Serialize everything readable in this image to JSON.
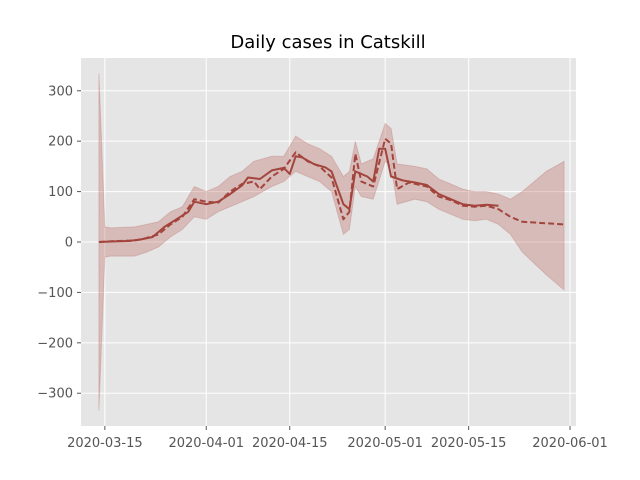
{
  "colors": {
    "plot_background": "#e5e5e5",
    "grid": "#ffffff",
    "series": "#a3453d",
    "band": "#b35a52",
    "band_opacity": 0.3
  },
  "chart_data": {
    "type": "line",
    "title": "Daily cases in Catskill",
    "xlabel": "",
    "ylabel": "",
    "x_type": "date",
    "xlim": [
      "2020-03-11",
      "2020-06-02"
    ],
    "ylim": [
      -365,
      365
    ],
    "x_ticks": [
      "2020-03-15",
      "2020-04-01",
      "2020-04-15",
      "2020-05-01",
      "2020-05-15",
      "2020-06-01"
    ],
    "y_ticks": [
      -300,
      -200,
      -100,
      0,
      100,
      200,
      300
    ],
    "y_tick_labels": [
      "−300",
      "−200",
      "−100",
      "0",
      "100",
      "200",
      "300"
    ],
    "grid": true,
    "legend": "none",
    "series": [
      {
        "style": "solid",
        "points": [
          [
            "2020-03-14",
            0
          ],
          [
            "2020-03-16",
            1
          ],
          [
            "2020-03-19",
            2
          ],
          [
            "2020-03-21",
            5
          ],
          [
            "2020-03-23",
            10
          ],
          [
            "2020-03-25",
            30
          ],
          [
            "2020-03-27",
            45
          ],
          [
            "2020-03-29",
            60
          ],
          [
            "2020-03-30",
            80
          ],
          [
            "2020-04-01",
            75
          ],
          [
            "2020-04-03",
            80
          ],
          [
            "2020-04-05",
            95
          ],
          [
            "2020-04-07",
            112
          ],
          [
            "2020-04-08",
            128
          ],
          [
            "2020-04-10",
            125
          ],
          [
            "2020-04-12",
            142
          ],
          [
            "2020-04-14",
            147
          ],
          [
            "2020-04-15",
            135
          ],
          [
            "2020-04-16",
            170
          ],
          [
            "2020-04-17",
            168
          ],
          [
            "2020-04-19",
            155
          ],
          [
            "2020-04-21",
            148
          ],
          [
            "2020-04-22",
            140
          ],
          [
            "2020-04-24",
            75
          ],
          [
            "2020-04-25",
            65
          ],
          [
            "2020-04-26",
            140
          ],
          [
            "2020-04-28",
            130
          ],
          [
            "2020-04-29",
            120
          ],
          [
            "2020-04-30",
            185
          ],
          [
            "2020-05-01",
            185
          ],
          [
            "2020-05-02",
            130
          ],
          [
            "2020-05-04",
            122
          ],
          [
            "2020-05-06",
            118
          ],
          [
            "2020-05-08",
            113
          ],
          [
            "2020-05-10",
            95
          ],
          [
            "2020-05-12",
            85
          ],
          [
            "2020-05-14",
            75
          ],
          [
            "2020-05-16",
            72
          ],
          [
            "2020-05-18",
            74
          ],
          [
            "2020-05-20",
            72
          ]
        ]
      },
      {
        "style": "dashed",
        "points": [
          [
            "2020-03-14",
            0
          ],
          [
            "2020-03-17",
            2
          ],
          [
            "2020-03-20",
            3
          ],
          [
            "2020-03-22",
            8
          ],
          [
            "2020-03-24",
            15
          ],
          [
            "2020-03-26",
            35
          ],
          [
            "2020-03-28",
            50
          ],
          [
            "2020-03-30",
            85
          ],
          [
            "2020-04-01",
            80
          ],
          [
            "2020-04-03",
            78
          ],
          [
            "2020-04-05",
            100
          ],
          [
            "2020-04-07",
            115
          ],
          [
            "2020-04-09",
            120
          ],
          [
            "2020-04-10",
            105
          ],
          [
            "2020-04-12",
            130
          ],
          [
            "2020-04-14",
            145
          ],
          [
            "2020-04-16",
            178
          ],
          [
            "2020-04-18",
            160
          ],
          [
            "2020-04-20",
            150
          ],
          [
            "2020-04-22",
            128
          ],
          [
            "2020-04-24",
            45
          ],
          [
            "2020-04-25",
            60
          ],
          [
            "2020-04-26",
            175
          ],
          [
            "2020-04-27",
            120
          ],
          [
            "2020-04-29",
            110
          ],
          [
            "2020-05-01",
            205
          ],
          [
            "2020-05-02",
            195
          ],
          [
            "2020-05-03",
            105
          ],
          [
            "2020-05-05",
            118
          ],
          [
            "2020-05-08",
            110
          ],
          [
            "2020-05-10",
            90
          ],
          [
            "2020-05-12",
            83
          ],
          [
            "2020-05-14",
            72
          ],
          [
            "2020-05-16",
            70
          ],
          [
            "2020-05-18",
            72
          ],
          [
            "2020-05-20",
            65
          ],
          [
            "2020-05-22",
            50
          ],
          [
            "2020-05-24",
            40
          ],
          [
            "2020-05-28",
            37
          ],
          [
            "2020-05-31",
            35
          ]
        ]
      }
    ],
    "band": {
      "upper": [
        [
          "2020-03-14",
          335
        ],
        [
          "2020-03-15",
          30
        ],
        [
          "2020-03-16",
          28
        ],
        [
          "2020-03-20",
          30
        ],
        [
          "2020-03-22",
          35
        ],
        [
          "2020-03-24",
          40
        ],
        [
          "2020-03-26",
          60
        ],
        [
          "2020-03-28",
          70
        ],
        [
          "2020-03-30",
          110
        ],
        [
          "2020-04-01",
          100
        ],
        [
          "2020-04-03",
          110
        ],
        [
          "2020-04-05",
          130
        ],
        [
          "2020-04-07",
          140
        ],
        [
          "2020-04-09",
          160
        ],
        [
          "2020-04-12",
          170
        ],
        [
          "2020-04-14",
          170
        ],
        [
          "2020-04-16",
          210
        ],
        [
          "2020-04-18",
          195
        ],
        [
          "2020-04-20",
          185
        ],
        [
          "2020-04-22",
          170
        ],
        [
          "2020-04-24",
          130
        ],
        [
          "2020-04-25",
          140
        ],
        [
          "2020-04-26",
          200
        ],
        [
          "2020-04-27",
          155
        ],
        [
          "2020-04-29",
          165
        ],
        [
          "2020-05-01",
          235
        ],
        [
          "2020-05-02",
          225
        ],
        [
          "2020-05-03",
          155
        ],
        [
          "2020-05-06",
          150
        ],
        [
          "2020-05-08",
          145
        ],
        [
          "2020-05-10",
          125
        ],
        [
          "2020-05-12",
          115
        ],
        [
          "2020-05-14",
          105
        ],
        [
          "2020-05-16",
          100
        ],
        [
          "2020-05-18",
          100
        ],
        [
          "2020-05-20",
          95
        ],
        [
          "2020-05-22",
          85
        ],
        [
          "2020-05-24",
          100
        ],
        [
          "2020-05-28",
          140
        ],
        [
          "2020-05-31",
          160
        ]
      ],
      "lower": [
        [
          "2020-03-14",
          -335
        ],
        [
          "2020-03-15",
          -30
        ],
        [
          "2020-03-16",
          -28
        ],
        [
          "2020-03-20",
          -28
        ],
        [
          "2020-03-22",
          -20
        ],
        [
          "2020-03-24",
          -10
        ],
        [
          "2020-03-26",
          10
        ],
        [
          "2020-03-28",
          25
        ],
        [
          "2020-03-30",
          50
        ],
        [
          "2020-04-01",
          45
        ],
        [
          "2020-04-03",
          60
        ],
        [
          "2020-04-05",
          70
        ],
        [
          "2020-04-07",
          80
        ],
        [
          "2020-04-09",
          90
        ],
        [
          "2020-04-12",
          110
        ],
        [
          "2020-04-14",
          120
        ],
        [
          "2020-04-16",
          140
        ],
        [
          "2020-04-18",
          130
        ],
        [
          "2020-04-20",
          120
        ],
        [
          "2020-04-22",
          100
        ],
        [
          "2020-04-24",
          15
        ],
        [
          "2020-04-25",
          25
        ],
        [
          "2020-04-26",
          110
        ],
        [
          "2020-04-27",
          90
        ],
        [
          "2020-04-29",
          85
        ],
        [
          "2020-05-01",
          160
        ],
        [
          "2020-05-02",
          150
        ],
        [
          "2020-05-03",
          75
        ],
        [
          "2020-05-06",
          85
        ],
        [
          "2020-05-08",
          80
        ],
        [
          "2020-05-10",
          65
        ],
        [
          "2020-05-12",
          55
        ],
        [
          "2020-05-14",
          45
        ],
        [
          "2020-05-16",
          42
        ],
        [
          "2020-05-18",
          45
        ],
        [
          "2020-05-20",
          35
        ],
        [
          "2020-05-22",
          15
        ],
        [
          "2020-05-24",
          -20
        ],
        [
          "2020-05-28",
          -65
        ],
        [
          "2020-05-31",
          -95
        ]
      ]
    }
  }
}
